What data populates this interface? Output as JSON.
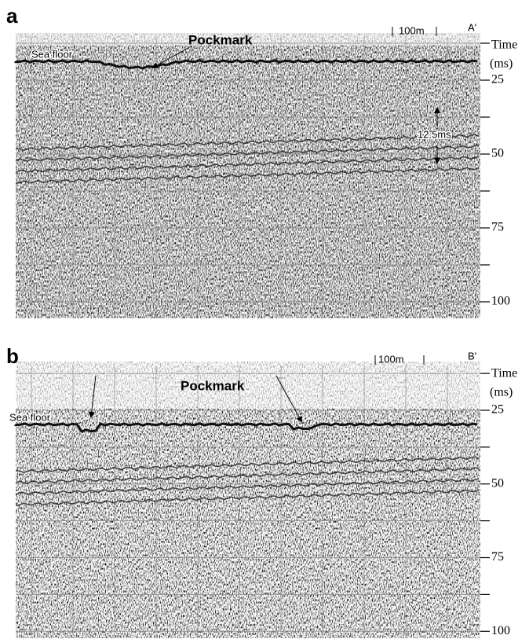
{
  "panels": [
    {
      "label": "a",
      "annotation": "Pockmark",
      "sea_floor": "Sea floor",
      "scale_bar": "100m",
      "profile_end": "A'",
      "axis_title": "Time",
      "axis_unit": "(ms)",
      "ticks": [
        25,
        50,
        75,
        100
      ],
      "interval": "12.5ms"
    },
    {
      "label": "b",
      "annotation": "Pockmark",
      "sea_floor": "Sea floor",
      "scale_bar": "100m",
      "profile_end": "B'",
      "axis_title": "Time",
      "axis_unit": "(ms)",
      "ticks": [
        25,
        50,
        75,
        100
      ]
    }
  ]
}
